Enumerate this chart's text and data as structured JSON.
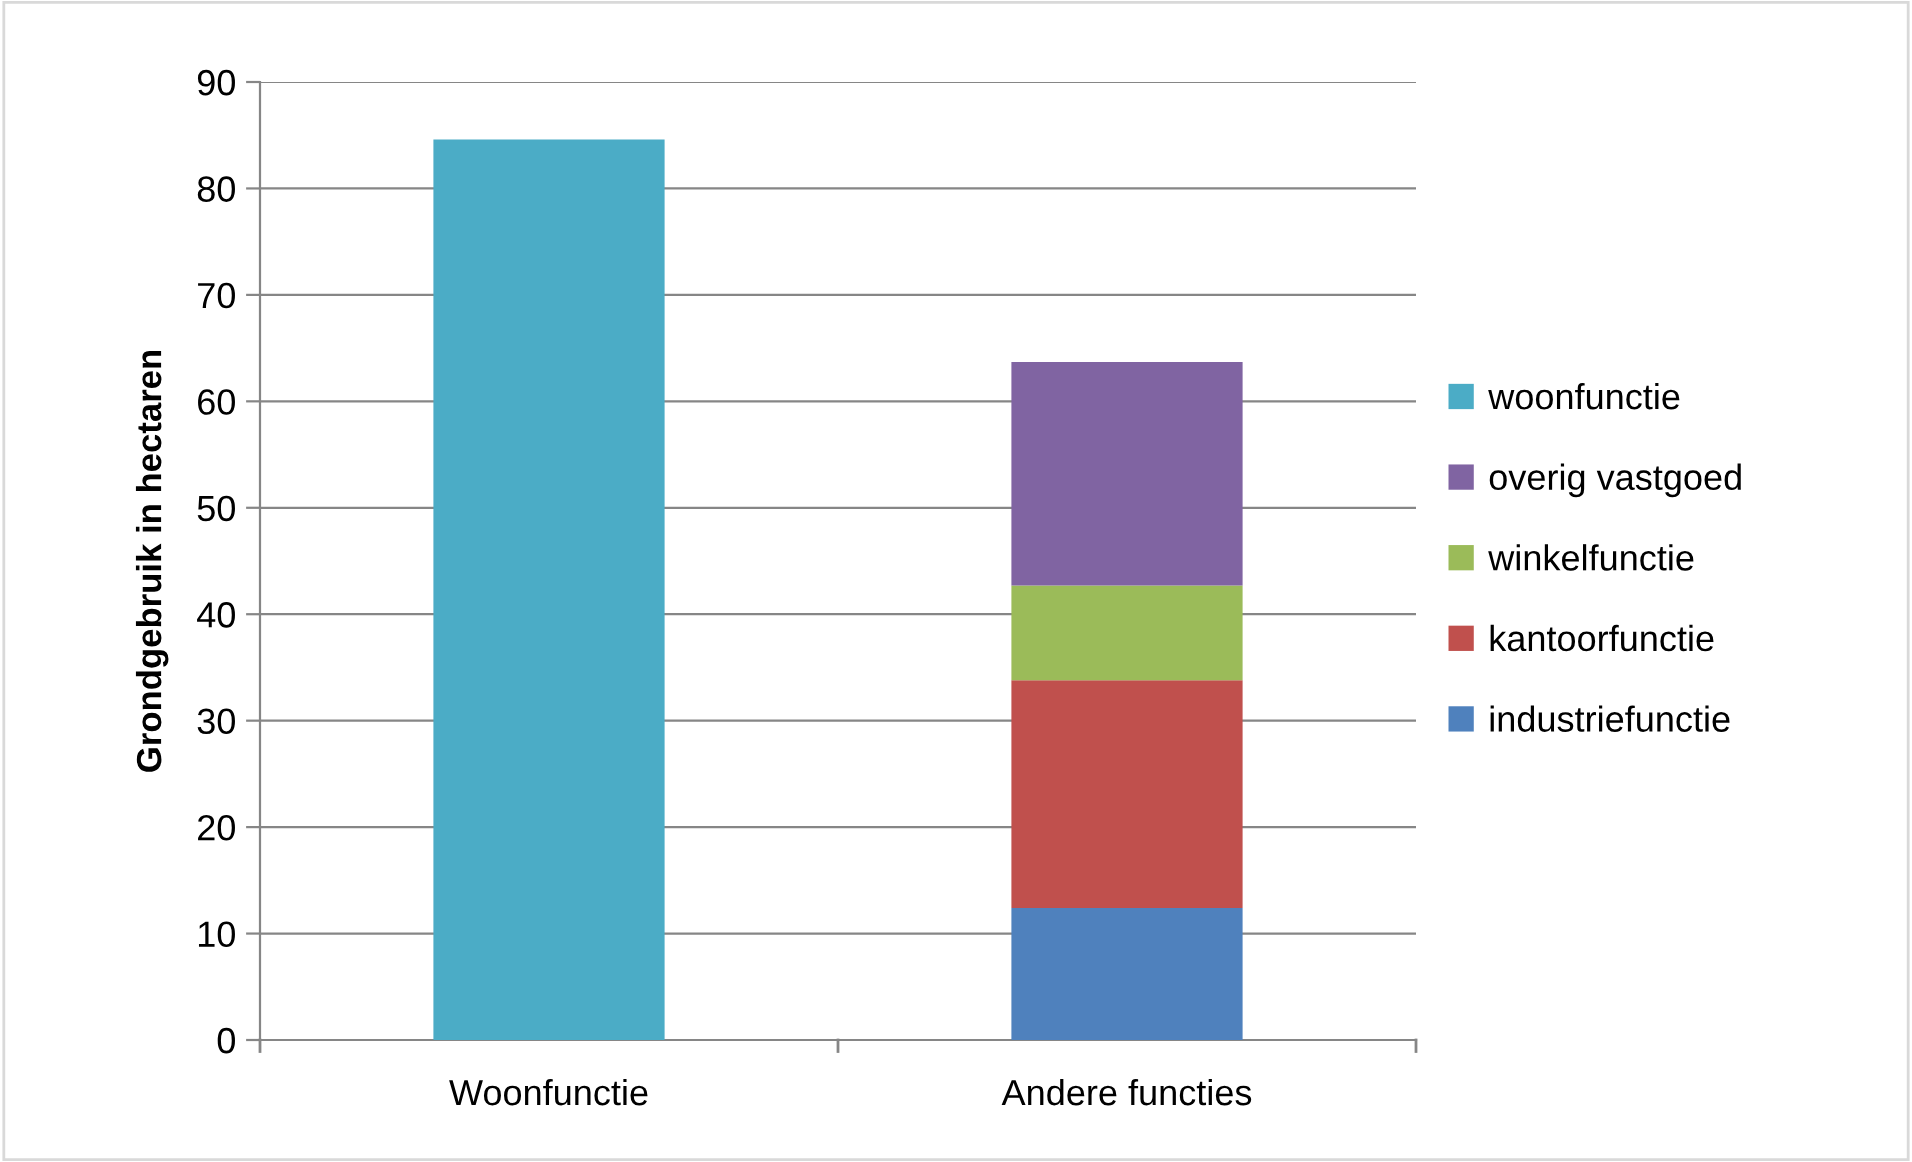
{
  "chart_data": {
    "type": "bar",
    "stacked": true,
    "ylabel": "Grondgebruik in hectaren",
    "categories": [
      "Woonfunctie",
      "Andere functies"
    ],
    "series": [
      {
        "name": "industriefunctie",
        "color": "#4f81bd",
        "values": [
          null,
          12.4
        ]
      },
      {
        "name": "kantoorfunctie",
        "color": "#c0504d",
        "values": [
          null,
          21.4
        ]
      },
      {
        "name": "winkelfunctie",
        "color": "#9bbb59",
        "values": [
          null,
          8.9
        ]
      },
      {
        "name": "overig vastgoed",
        "color": "#8064a2",
        "values": [
          null,
          21.0
        ]
      },
      {
        "name": "woonfunctie",
        "color": "#4bacc6",
        "values": [
          84.6,
          null
        ]
      }
    ],
    "ylim": [
      0,
      90
    ],
    "yticks": [
      0,
      10,
      20,
      30,
      40,
      50,
      60,
      70,
      80,
      90
    ],
    "grid": "y",
    "legend": "right"
  }
}
